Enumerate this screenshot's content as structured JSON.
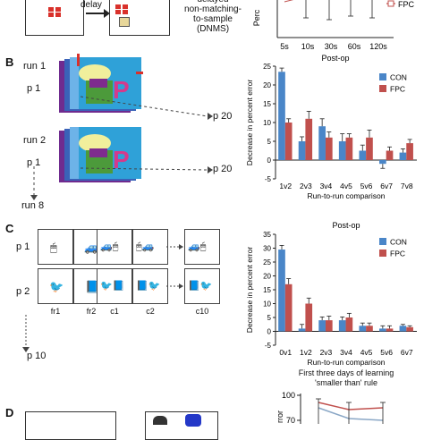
{
  "panelA": {
    "delay": "delay",
    "task_line1": "delayed",
    "task_line2": "non-matching-",
    "task_line3": "to-sample",
    "task_line4": "(DNMS)",
    "chart": {
      "ylabel": "Perc",
      "xlabel": "Post-op",
      "legend": "FPC",
      "categories": [
        "5s",
        "10s",
        "30s",
        "60s",
        "120s"
      ]
    }
  },
  "panelB": {
    "letter": "B",
    "run1": "run 1",
    "p1a": "p 1",
    "p20a": "p 20",
    "run2": "run 2",
    "p1b": "p 1",
    "p20b": "p 20",
    "run8": "run 8"
  },
  "panelC": {
    "letter": "C",
    "p1": "p 1",
    "p2": "p 2",
    "p10": "p 10",
    "frames": [
      "fr1",
      "fr2",
      "c1",
      "c2",
      "c10"
    ]
  },
  "panelD": {
    "letter": "D",
    "title_line1": "First three days of learning",
    "title_line2": "'smaller than' rule",
    "ytick": "100",
    "ytick2": "70",
    "ylabel_fragment": "rror"
  },
  "colors": {
    "con": "#4a86c8",
    "fpc": "#c0504d"
  },
  "chart_data": [
    {
      "type": "bar",
      "title": "",
      "xlabel": "Run-to-run comparison",
      "ylabel": "Decrease in percent error",
      "ylim": [
        -5,
        25
      ],
      "yticks": [
        -5,
        0,
        5,
        10,
        15,
        20,
        25
      ],
      "categories": [
        "1v2",
        "2v3",
        "3v4",
        "4v5",
        "5v6",
        "6v7",
        "7v8"
      ],
      "series": [
        {
          "name": "CON",
          "values": [
            23.5,
            5,
            9,
            5,
            2.5,
            -1,
            2
          ],
          "errors": [
            1,
            1.2,
            2,
            2,
            1.5,
            1.2,
            1
          ]
        },
        {
          "name": "FPC",
          "values": [
            10,
            11,
            6,
            6,
            6,
            2.5,
            4.5
          ],
          "errors": [
            1,
            2,
            1.5,
            1,
            2,
            1,
            1
          ]
        }
      ],
      "legend": "top-right"
    },
    {
      "type": "bar",
      "title": "Post-op",
      "xlabel": "Run-to-run comparison",
      "ylabel": "Decrease in percent error",
      "ylim": [
        -5,
        35
      ],
      "yticks": [
        -5,
        0,
        5,
        10,
        15,
        20,
        25,
        30,
        35
      ],
      "categories": [
        "0v1",
        "1v2",
        "2v3",
        "3v4",
        "4v5",
        "5v6",
        "6v7"
      ],
      "series": [
        {
          "name": "CON",
          "values": [
            29.5,
            1,
            4,
            4,
            2,
            1,
            2
          ],
          "errors": [
            1.5,
            1.5,
            1.2,
            1.2,
            1,
            1,
            0.5
          ]
        },
        {
          "name": "FPC",
          "values": [
            17,
            10,
            4,
            5,
            2,
            1,
            1.5
          ],
          "errors": [
            2,
            2,
            1.5,
            1.5,
            1,
            1,
            0.5
          ]
        }
      ],
      "legend": "top-right"
    }
  ]
}
